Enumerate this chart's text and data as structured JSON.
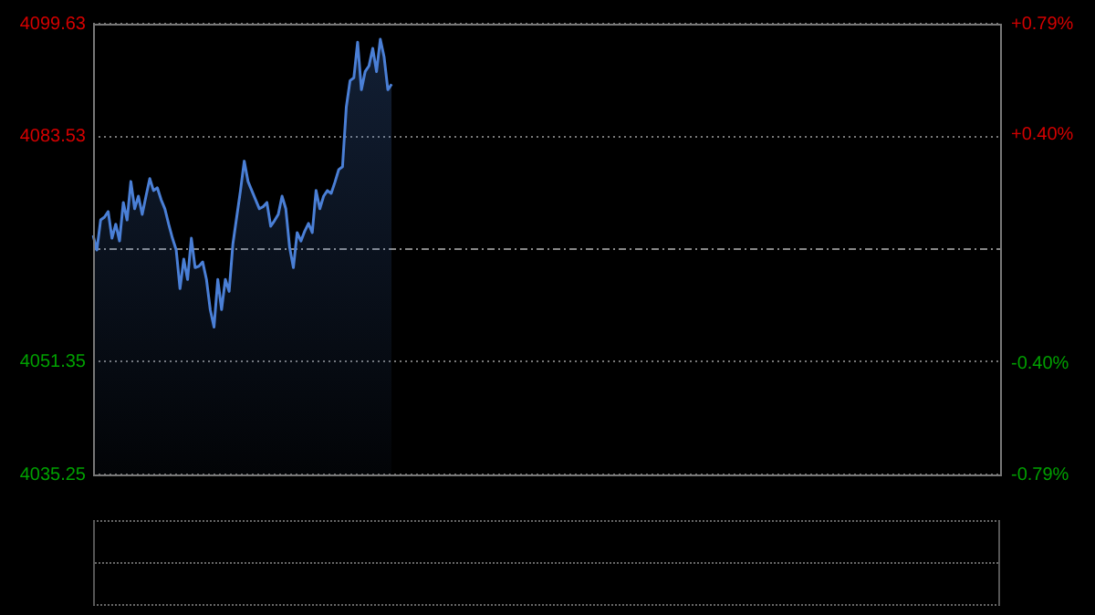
{
  "chart_data": {
    "type": "area",
    "categories": [
      null,
      null,
      null,
      null,
      null,
      null,
      null,
      null,
      null,
      null,
      null,
      null,
      null,
      null,
      null,
      null,
      null,
      null,
      null,
      null,
      null,
      null,
      null,
      null,
      null,
      null,
      null,
      null,
      null,
      null,
      null,
      null,
      null,
      null,
      null,
      null,
      null,
      null,
      null,
      null,
      null,
      null,
      null,
      null,
      null,
      null,
      null,
      null,
      null,
      null,
      null,
      null,
      null,
      null,
      null,
      null,
      null,
      null,
      null,
      null,
      null,
      null,
      null,
      null,
      null,
      null,
      null,
      null,
      null,
      null,
      null,
      null,
      null,
      null,
      null,
      null,
      null,
      null,
      null,
      null,
      null,
      null,
      null,
      null,
      null,
      null,
      null,
      null,
      null,
      null,
      null,
      null,
      null,
      null,
      null,
      null,
      null,
      null,
      null,
      null,
      null,
      null,
      null,
      null,
      null,
      null,
      null,
      null,
      null,
      null,
      null,
      null,
      null,
      null,
      null,
      null,
      null,
      null,
      null,
      null,
      null,
      null,
      null,
      null,
      null,
      null,
      null,
      null,
      null,
      null,
      null,
      null,
      null,
      null,
      null,
      null,
      null,
      null,
      null,
      null,
      null,
      null,
      null,
      null,
      null,
      null,
      null,
      null,
      null,
      null,
      null,
      null,
      null,
      null,
      null,
      null,
      null,
      null,
      null,
      null,
      null,
      null,
      null,
      null,
      null,
      null,
      null,
      null,
      null,
      null,
      null,
      null,
      null,
      null,
      null,
      null,
      null,
      null,
      null,
      null,
      null,
      null,
      null,
      null,
      null,
      null,
      null,
      null,
      null,
      null,
      null,
      null,
      null,
      null,
      null,
      null,
      null,
      null,
      null,
      null,
      null,
      null,
      null,
      null,
      null,
      null,
      null,
      null,
      null,
      null,
      null,
      null,
      null,
      null,
      null,
      null,
      null,
      null,
      null,
      null,
      null,
      null,
      null,
      null,
      null,
      null,
      null,
      null,
      null,
      null,
      null,
      null,
      null,
      null,
      null,
      null,
      null,
      null,
      null,
      null,
      null
    ],
    "series": [
      {
        "color": "#4a7fd6",
        "values": [
          4069.4,
          4067.3,
          4071.6,
          4072.0,
          4072.8,
          4069.0,
          4071.0,
          4068.6,
          4074.1,
          4071.6,
          4077.1,
          4073.2,
          4075.0,
          4072.4,
          4075.0,
          4077.5,
          4075.8,
          4076.2,
          4074.5,
          4073.2,
          4071.0,
          4069.0,
          4067.3,
          4061.8,
          4066.0,
          4063.1,
          4069.0,
          4064.8,
          4065.0,
          4065.6,
          4063.1,
          4058.8,
          4056.3,
          4063.1,
          4058.8,
          4063.1,
          4061.4,
          4068.2,
          4072.0,
          4075.8,
          4080.0,
          4077.1,
          4075.8,
          4074.5,
          4073.2,
          4073.5,
          4074.1,
          4070.7,
          4071.5,
          4072.4,
          4075.0,
          4073.2,
          4067.7,
          4064.8,
          4069.8,
          4068.6,
          4070.0,
          4071.1,
          4069.8,
          4075.8,
          4073.2,
          4075.0,
          4075.8,
          4075.4,
          4077.0,
          4078.8,
          4079.2,
          4087.7,
          4091.5,
          4091.9,
          4097.0,
          4090.2,
          4092.8,
          4093.6,
          4096.1,
          4092.8,
          4097.4,
          4094.9,
          4090.2,
          4091.0,
          null,
          null,
          null,
          null,
          null,
          null,
          null,
          null,
          null,
          null,
          null,
          null,
          null,
          null,
          null,
          null,
          null,
          null,
          null,
          null,
          null,
          null,
          null,
          null,
          null,
          null,
          null,
          null,
          null,
          null,
          null,
          null,
          null,
          null,
          null,
          null,
          null,
          null,
          null,
          null,
          null,
          null,
          null,
          null,
          null,
          null,
          null,
          null,
          null,
          null,
          null,
          null,
          null,
          null,
          null,
          null,
          null,
          null,
          null,
          null,
          null,
          null,
          null,
          null,
          null,
          null,
          null,
          null,
          null,
          null,
          null,
          null,
          null,
          null,
          null,
          null,
          null,
          null,
          null,
          null,
          null,
          null,
          null,
          null,
          null,
          null,
          null,
          null,
          null,
          null,
          null,
          null,
          null,
          null,
          null,
          null,
          null,
          null,
          null,
          null,
          null,
          null,
          null,
          null,
          null,
          null,
          null,
          null,
          null,
          null,
          null,
          null,
          null,
          null,
          null,
          null,
          null,
          null,
          null,
          null,
          null,
          null,
          null,
          null,
          null,
          null,
          null,
          null,
          null,
          null,
          null,
          null,
          null,
          null,
          null,
          null,
          null,
          null,
          null,
          null,
          null,
          null,
          null,
          null,
          null,
          null,
          null,
          null,
          null,
          null,
          null,
          null,
          null,
          null,
          null,
          null,
          null,
          null,
          null,
          null,
          null
        ]
      }
    ],
    "ylim": [
      4035.25,
      4099.63
    ],
    "yticks": [
      4035.25,
      4051.35,
      4083.53,
      4099.63
    ],
    "y2lim": [
      -0.79,
      0.79
    ],
    "y2ticks": [
      {
        "value": -0.79,
        "label": "-0.79%"
      },
      {
        "value": -0.4,
        "label": "-0.40%"
      },
      {
        "value": 0.4,
        "label": "+0.40%"
      },
      {
        "value": 0.79,
        "label": "+0.79%"
      }
    ],
    "ref_lines": [
      {
        "axis": "y",
        "value": 4067.44,
        "line_style": "dashed"
      }
    ],
    "grid": "y",
    "tick_labels": "y",
    "legend": false,
    "marker": "none"
  }
}
